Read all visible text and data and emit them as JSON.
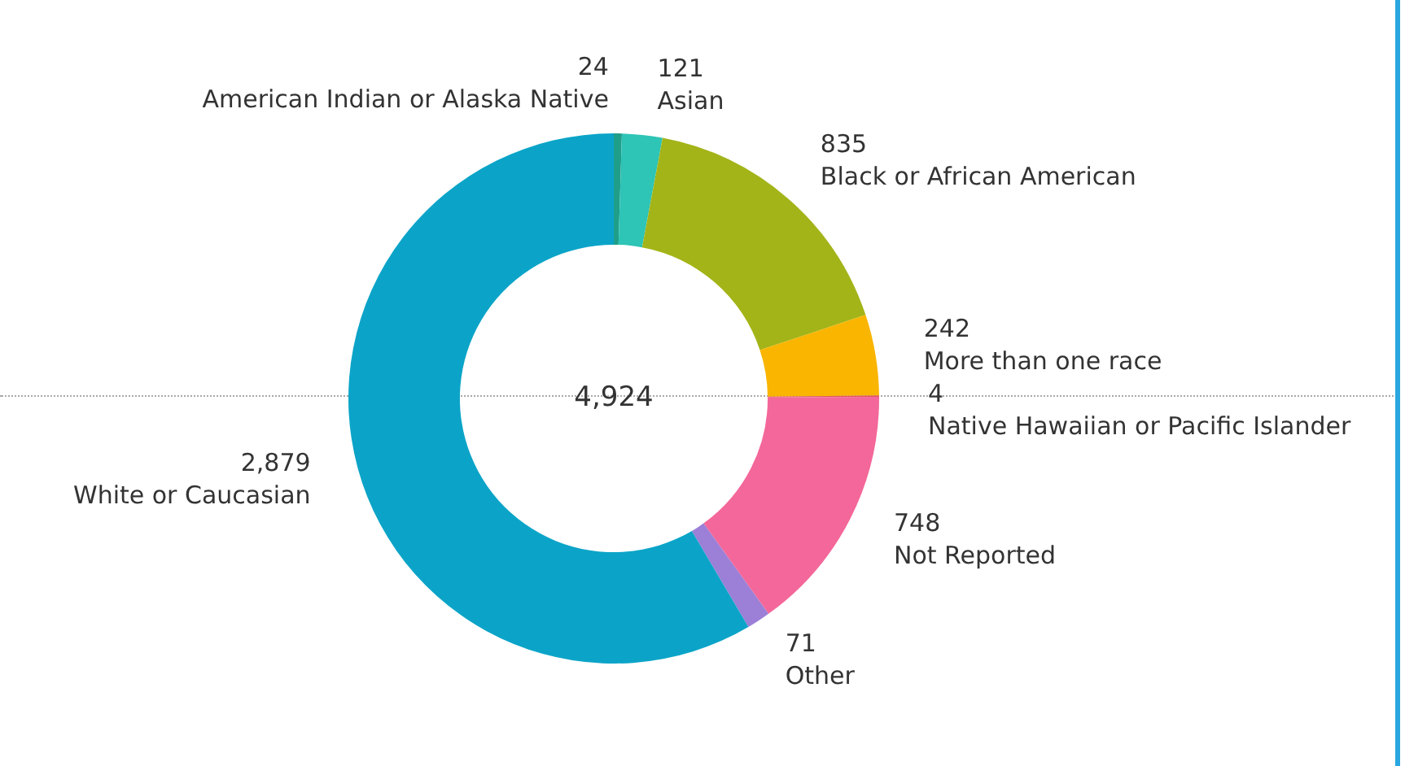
{
  "chart_data": {
    "type": "donut",
    "categories": [
      "American Indian or Alaska Native",
      "Asian",
      "Black or African American",
      "More than one race",
      "Native Hawaiian or Pacific Islander",
      "Not Reported",
      "Other",
      "White or Caucasian"
    ],
    "values": [
      24,
      121,
      835,
      242,
      4,
      748,
      71,
      2879
    ],
    "colors": [
      "#1f9e89",
      "#2ec4b6",
      "#a3b418",
      "#f9b500",
      "#e15759",
      "#f4679a",
      "#9c7fd6",
      "#0ba4c8"
    ],
    "value_labels": [
      "24",
      "121",
      "835",
      "242",
      "4",
      "748",
      "71",
      "2,879"
    ],
    "legend": false,
    "annotations": [
      "4,924"
    ]
  }
}
